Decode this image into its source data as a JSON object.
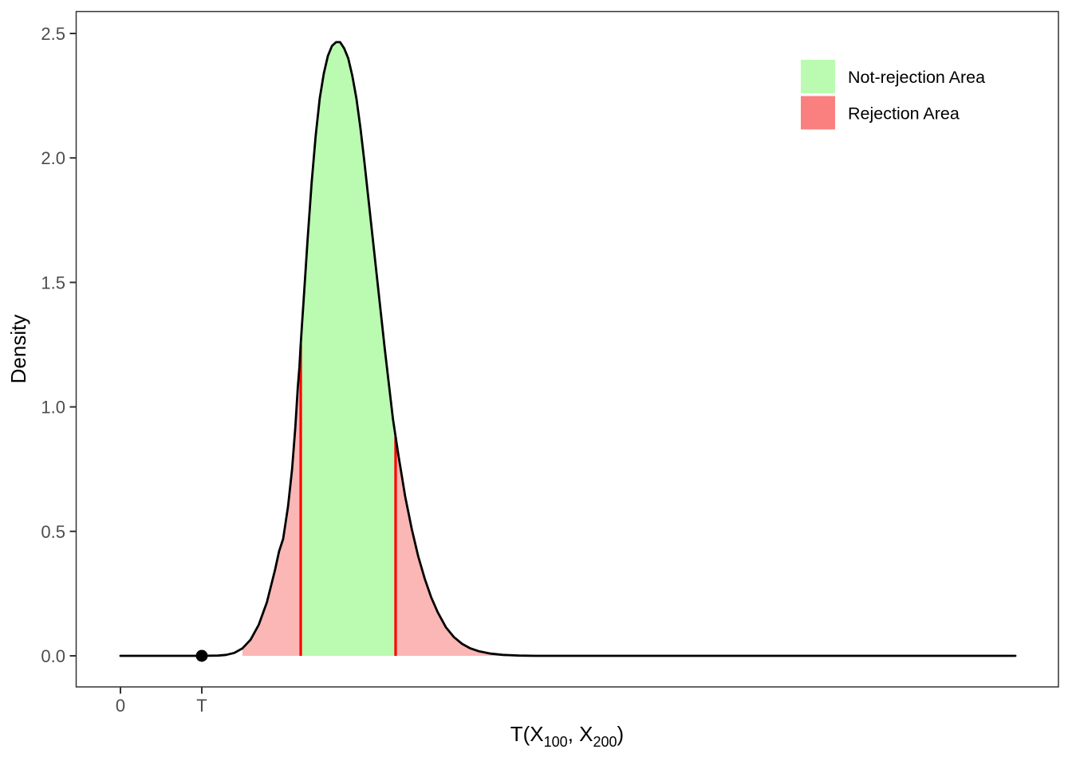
{
  "figure": {
    "background_color": "#ffffff",
    "panel_border_color": "#333333",
    "tick_mark_color": "#333333",
    "axis_text_color": "#4d4d4d",
    "axis_title_color": "#000000",
    "curve_color": "#000000",
    "boundary_line_color": "#fe0000",
    "observed_point_color": "#000000"
  },
  "chart_data": {
    "type": "area",
    "title": "",
    "ylabel": "Density",
    "xlabel_parts": {
      "prefix": "T(X",
      "sub1": "100",
      "mid": ", X",
      "sub2": "200",
      "suffix": ")"
    },
    "grid": false,
    "y_ticks": [
      {
        "label": "0.0",
        "value": 0.0
      },
      {
        "label": "0.5",
        "value": 0.5
      },
      {
        "label": "1.0",
        "value": 1.0
      },
      {
        "label": "1.5",
        "value": 1.5
      },
      {
        "label": "2.0",
        "value": 2.0
      },
      {
        "label": "2.5",
        "value": 2.5
      }
    ],
    "x_ticks": [
      {
        "label": "0",
        "value": 0
      },
      {
        "label": "T",
        "value": 1
      }
    ],
    "ylim": [
      0,
      2.5
    ],
    "xlim_in_T_units": [
      -0.55,
      11.53
    ],
    "peak_density": 2.465,
    "curve": {
      "x_units": "multiples of observed statistic T (axis labeled 0 and T only)",
      "x": [
        0,
        0.6,
        1.0,
        1.2,
        1.3,
        1.4,
        1.5,
        1.6,
        1.7,
        1.8,
        1.9,
        1.95,
        2.0,
        2.06,
        2.11,
        2.15,
        2.18,
        2.2,
        2.216,
        2.233,
        2.25,
        2.3,
        2.35,
        2.4,
        2.45,
        2.5,
        2.55,
        2.6,
        2.65,
        2.7,
        2.75,
        2.8,
        2.85,
        2.9,
        2.95,
        3.0,
        3.05,
        3.1,
        3.15,
        3.2,
        3.25,
        3.3,
        3.35,
        3.382,
        3.42,
        3.5,
        3.58,
        3.66,
        3.74,
        3.82,
        3.9,
        4.0,
        4.1,
        4.2,
        4.3,
        4.4,
        4.55,
        4.7,
        4.9,
        5.1,
        5.6,
        7.0,
        9.0,
        11.0
      ],
      "density": [
        0,
        0,
        0,
        0.001,
        0.004,
        0.012,
        0.03,
        0.065,
        0.125,
        0.215,
        0.345,
        0.42,
        0.47,
        0.6,
        0.75,
        0.92,
        1.08,
        1.16,
        1.25,
        1.34,
        1.42,
        1.67,
        1.9,
        2.09,
        2.24,
        2.34,
        2.41,
        2.45,
        2.465,
        2.465,
        2.44,
        2.4,
        2.33,
        2.24,
        2.12,
        1.98,
        1.83,
        1.68,
        1.53,
        1.38,
        1.23,
        1.09,
        0.95,
        0.88,
        0.8,
        0.64,
        0.51,
        0.4,
        0.31,
        0.235,
        0.175,
        0.115,
        0.075,
        0.048,
        0.03,
        0.019,
        0.009,
        0.004,
        0.001,
        0,
        0,
        0,
        0,
        0
      ]
    },
    "regions": [
      {
        "name": "rejection-left",
        "from": 1.5,
        "to": 2.216,
        "fill": "#fbb6b6"
      },
      {
        "name": "not-rejection",
        "from": 2.216,
        "to": 3.382,
        "fill": "#bafbb1"
      },
      {
        "name": "rejection-right",
        "from": 3.382,
        "to": 4.9,
        "fill": "#fbb6b6"
      }
    ],
    "boundaries": [
      {
        "x": 2.216,
        "height": 1.25
      },
      {
        "x": 3.382,
        "height": 0.88
      }
    ],
    "observed_point": {
      "x": 1,
      "density": 0,
      "tick_label": "T"
    },
    "legend": {
      "position": "top-right",
      "entries": [
        {
          "label": "Not-rejection Area",
          "color": "#bafbb1"
        },
        {
          "label": "Rejection Area",
          "color": "#fa8080"
        }
      ]
    }
  }
}
